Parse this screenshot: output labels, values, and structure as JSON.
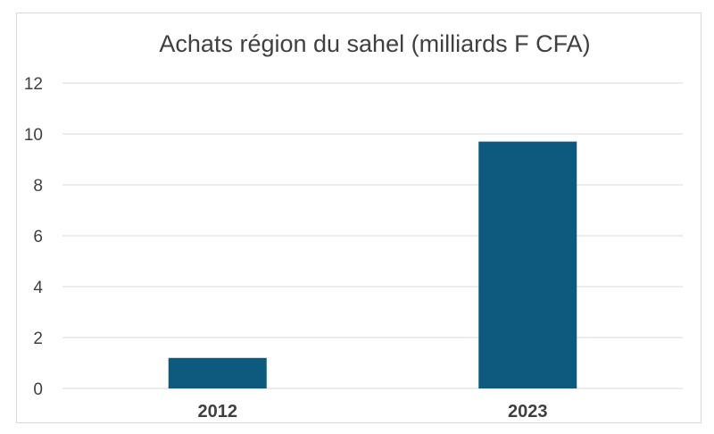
{
  "chart_data": {
    "type": "bar",
    "title": "Achats région du sahel (milliards F CFA)",
    "xlabel": "",
    "ylabel": "",
    "categories": [
      "2012",
      "2023"
    ],
    "values": [
      1.2,
      9.7
    ],
    "ylim": [
      0,
      12
    ],
    "yticks": [
      "0",
      "2",
      "4",
      "6",
      "8",
      "10",
      "12"
    ],
    "grid": true,
    "legend": "none",
    "bar_color": "#0e5a7e",
    "grid_color": "#d9d9d9",
    "text_color": "#404040"
  }
}
